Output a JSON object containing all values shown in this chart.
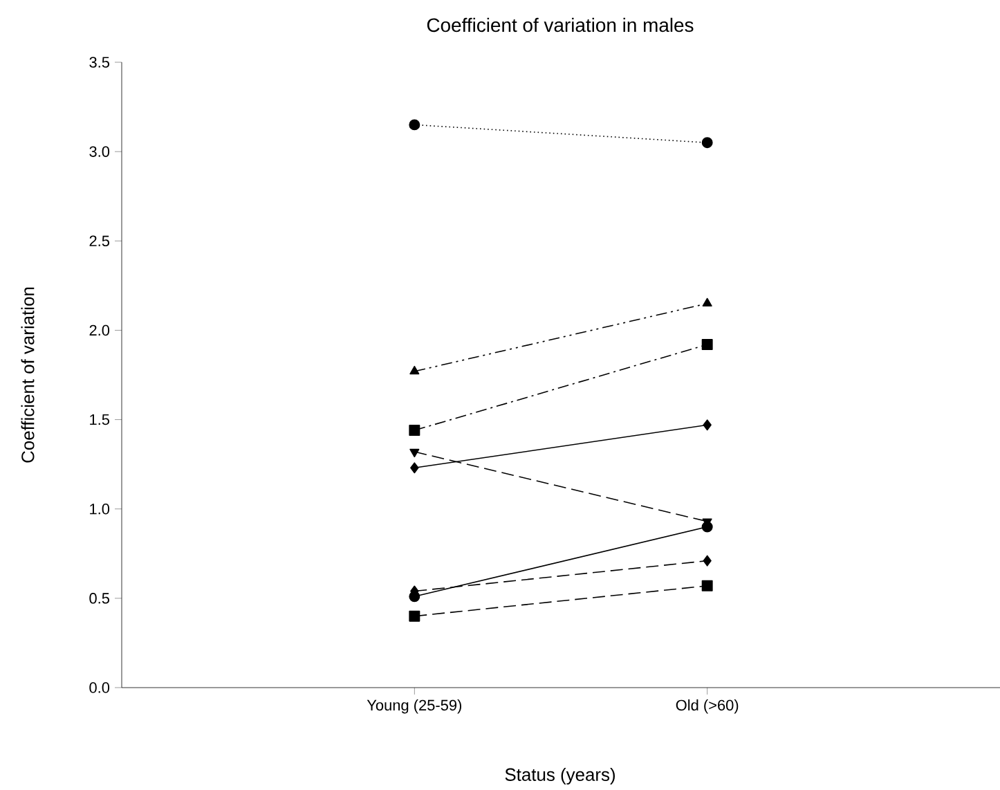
{
  "chart_data": {
    "type": "line",
    "title": "Coefficient of variation in males",
    "xlabel": "Status (years)",
    "ylabel": "Coefficient of variation",
    "categories": [
      "Young (25-59)",
      "Old (>60)"
    ],
    "ylim": [
      0,
      3.5
    ],
    "yticks": [
      {
        "value": 0,
        "label": "0.0"
      },
      {
        "value": 0.5,
        "label": "0.5"
      },
      {
        "value": 1,
        "label": "1.0"
      },
      {
        "value": 1.5,
        "label": "1.5"
      },
      {
        "value": 2,
        "label": "2.0"
      },
      {
        "value": 2.5,
        "label": "2.5"
      },
      {
        "value": 3,
        "label": "3.0"
      },
      {
        "value": 3.5,
        "label": "3.5"
      }
    ],
    "grid": false,
    "series": [
      {
        "color": "#000000",
        "marker": "circle",
        "line_style": "dotted",
        "values": [
          3.15,
          3.05
        ]
      },
      {
        "color": "#000000",
        "marker": "triangle",
        "line_style": "dashdotdot",
        "values": [
          1.77,
          2.15
        ]
      },
      {
        "color": "#000000",
        "marker": "square",
        "line_style": "dashdot",
        "values": [
          1.44,
          1.92
        ]
      },
      {
        "color": "#000000",
        "marker": "diamond",
        "line_style": "solid",
        "values": [
          1.23,
          1.47
        ]
      },
      {
        "color": "#000000",
        "marker": "triangle-down",
        "line_style": "dashed",
        "values": [
          1.32,
          0.93
        ]
      },
      {
        "color": "#000000",
        "marker": "circle",
        "line_style": "solid",
        "values": [
          0.51,
          0.9
        ]
      },
      {
        "color": "#000000",
        "marker": "diamond",
        "line_style": "dashed",
        "values": [
          0.54,
          0.71
        ]
      },
      {
        "color": "#000000",
        "marker": "square",
        "line_style": "dashed",
        "values": [
          0.4,
          0.57
        ]
      }
    ]
  }
}
